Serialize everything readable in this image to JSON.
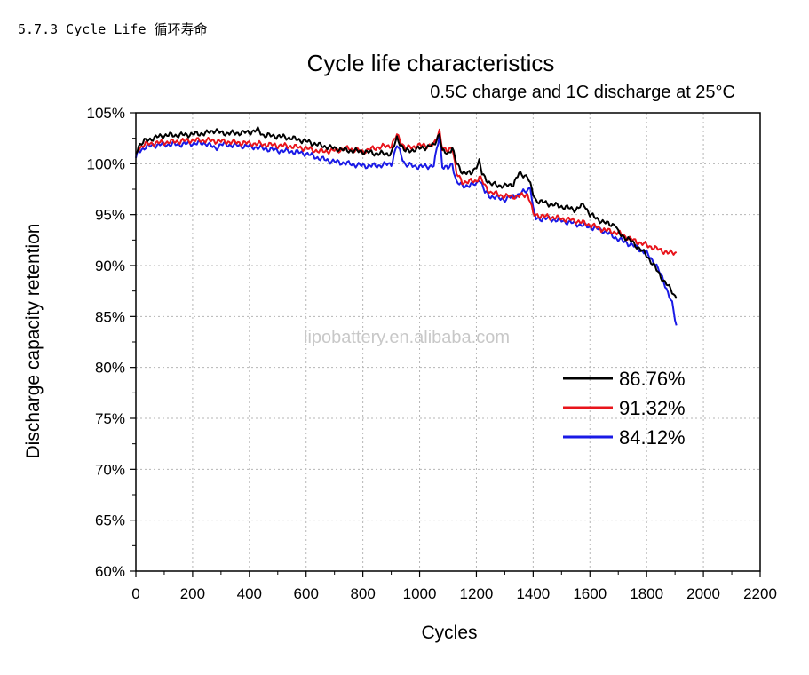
{
  "page": {
    "section_heading": "5.7.3 Cycle Life 循环寿命"
  },
  "chart_data": {
    "type": "line",
    "title": "Cycle life characteristics",
    "subtitle": "0.5C charge and 1C discharge at 25°C",
    "xlabel": "Cycles",
    "ylabel": "Discharge capacity retention",
    "xlim": [
      0,
      2200
    ],
    "ylim": [
      60,
      105
    ],
    "xticks": [
      0,
      200,
      400,
      600,
      800,
      1000,
      1200,
      1400,
      1600,
      1800,
      2000,
      2200
    ],
    "yticks": [
      "60%",
      "65%",
      "70%",
      "75%",
      "80%",
      "85%",
      "90%",
      "95%",
      "100%",
      "105%"
    ],
    "grid": true,
    "legend_position": "right",
    "watermark": "lipobattery.en.alibaba.com",
    "series": [
      {
        "name": "86.76%",
        "color": "#000000",
        "points": [
          [
            0,
            101.0
          ],
          [
            10,
            101.8
          ],
          [
            30,
            102.2
          ],
          [
            60,
            102.5
          ],
          [
            100,
            102.8
          ],
          [
            150,
            102.8
          ],
          [
            200,
            102.9
          ],
          [
            250,
            103.0
          ],
          [
            280,
            103.3
          ],
          [
            300,
            103.0
          ],
          [
            350,
            103.0
          ],
          [
            400,
            103.1
          ],
          [
            430,
            103.3
          ],
          [
            450,
            102.8
          ],
          [
            500,
            102.7
          ],
          [
            550,
            102.5
          ],
          [
            600,
            102.2
          ],
          [
            650,
            101.8
          ],
          [
            700,
            101.5
          ],
          [
            750,
            101.3
          ],
          [
            800,
            101.2
          ],
          [
            850,
            101.0
          ],
          [
            900,
            101.0
          ],
          [
            920,
            102.5
          ],
          [
            950,
            101.2
          ],
          [
            1000,
            101.5
          ],
          [
            1050,
            101.8
          ],
          [
            1070,
            103.0
          ],
          [
            1080,
            101.2
          ],
          [
            1100,
            101.0
          ],
          [
            1115,
            101.6
          ],
          [
            1130,
            100.0
          ],
          [
            1150,
            99.2
          ],
          [
            1180,
            99.0
          ],
          [
            1200,
            99.8
          ],
          [
            1210,
            100.2
          ],
          [
            1220,
            99.0
          ],
          [
            1250,
            98.0
          ],
          [
            1300,
            97.8
          ],
          [
            1330,
            98.0
          ],
          [
            1350,
            99.0
          ],
          [
            1380,
            98.8
          ],
          [
            1400,
            97.0
          ],
          [
            1410,
            96.4
          ],
          [
            1450,
            96.1
          ],
          [
            1500,
            95.8
          ],
          [
            1550,
            95.5
          ],
          [
            1580,
            96.0
          ],
          [
            1600,
            95.0
          ],
          [
            1650,
            94.2
          ],
          [
            1690,
            94.0
          ],
          [
            1700,
            93.2
          ],
          [
            1750,
            92.3
          ],
          [
            1800,
            91.0
          ],
          [
            1830,
            89.8
          ],
          [
            1860,
            88.5
          ],
          [
            1890,
            87.5
          ],
          [
            1905,
            86.76
          ]
        ]
      },
      {
        "name": "91.32%",
        "color": "#e8141b",
        "points": [
          [
            0,
            100.8
          ],
          [
            10,
            101.5
          ],
          [
            30,
            101.9
          ],
          [
            60,
            102.0
          ],
          [
            100,
            102.1
          ],
          [
            150,
            102.2
          ],
          [
            200,
            102.3
          ],
          [
            250,
            102.3
          ],
          [
            300,
            102.2
          ],
          [
            350,
            102.1
          ],
          [
            400,
            102.0
          ],
          [
            450,
            101.9
          ],
          [
            500,
            101.8
          ],
          [
            550,
            101.7
          ],
          [
            600,
            101.5
          ],
          [
            650,
            101.2
          ],
          [
            700,
            101.3
          ],
          [
            750,
            101.5
          ],
          [
            800,
            101.2
          ],
          [
            850,
            101.6
          ],
          [
            900,
            101.8
          ],
          [
            920,
            102.8
          ],
          [
            950,
            101.5
          ],
          [
            1000,
            101.8
          ],
          [
            1050,
            101.8
          ],
          [
            1070,
            103.3
          ],
          [
            1080,
            101.5
          ],
          [
            1100,
            101.2
          ],
          [
            1115,
            101.8
          ],
          [
            1130,
            99.0
          ],
          [
            1150,
            98.2
          ],
          [
            1200,
            98.3
          ],
          [
            1210,
            98.8
          ],
          [
            1230,
            97.8
          ],
          [
            1250,
            97.2
          ],
          [
            1300,
            96.8
          ],
          [
            1350,
            96.8
          ],
          [
            1380,
            97.0
          ],
          [
            1390,
            96.3
          ],
          [
            1400,
            95.0
          ],
          [
            1450,
            94.8
          ],
          [
            1500,
            94.6
          ],
          [
            1550,
            94.4
          ],
          [
            1600,
            94.0
          ],
          [
            1650,
            93.5
          ],
          [
            1700,
            93.2
          ],
          [
            1750,
            92.5
          ],
          [
            1800,
            92.0
          ],
          [
            1850,
            91.5
          ],
          [
            1880,
            91.2
          ],
          [
            1905,
            91.32
          ]
        ]
      },
      {
        "name": "84.12%",
        "color": "#1a1ae6",
        "points": [
          [
            0,
            100.5
          ],
          [
            10,
            101.2
          ],
          [
            30,
            101.6
          ],
          [
            60,
            101.8
          ],
          [
            100,
            101.9
          ],
          [
            150,
            101.9
          ],
          [
            200,
            102.0
          ],
          [
            250,
            102.0
          ],
          [
            280,
            101.5
          ],
          [
            300,
            101.9
          ],
          [
            350,
            101.8
          ],
          [
            400,
            101.7
          ],
          [
            450,
            101.5
          ],
          [
            500,
            101.3
          ],
          [
            550,
            101.2
          ],
          [
            600,
            101.0
          ],
          [
            650,
            100.5
          ],
          [
            700,
            100.2
          ],
          [
            750,
            100.0
          ],
          [
            800,
            99.8
          ],
          [
            850,
            99.8
          ],
          [
            900,
            100.0
          ],
          [
            920,
            101.8
          ],
          [
            950,
            99.9
          ],
          [
            1000,
            99.7
          ],
          [
            1050,
            99.8
          ],
          [
            1070,
            102.8
          ],
          [
            1080,
            99.8
          ],
          [
            1100,
            99.5
          ],
          [
            1115,
            100.0
          ],
          [
            1130,
            98.2
          ],
          [
            1150,
            97.8
          ],
          [
            1200,
            98.0
          ],
          [
            1210,
            98.6
          ],
          [
            1230,
            97.2
          ],
          [
            1250,
            96.8
          ],
          [
            1300,
            96.5
          ],
          [
            1350,
            97.0
          ],
          [
            1380,
            97.4
          ],
          [
            1390,
            97.8
          ],
          [
            1400,
            95.5
          ],
          [
            1410,
            94.6
          ],
          [
            1450,
            94.6
          ],
          [
            1500,
            94.4
          ],
          [
            1550,
            94.1
          ],
          [
            1600,
            93.8
          ],
          [
            1650,
            93.4
          ],
          [
            1700,
            92.6
          ],
          [
            1750,
            92.0
          ],
          [
            1800,
            91.2
          ],
          [
            1830,
            90.2
          ],
          [
            1860,
            88.5
          ],
          [
            1890,
            86.2
          ],
          [
            1905,
            84.12
          ]
        ]
      }
    ]
  }
}
